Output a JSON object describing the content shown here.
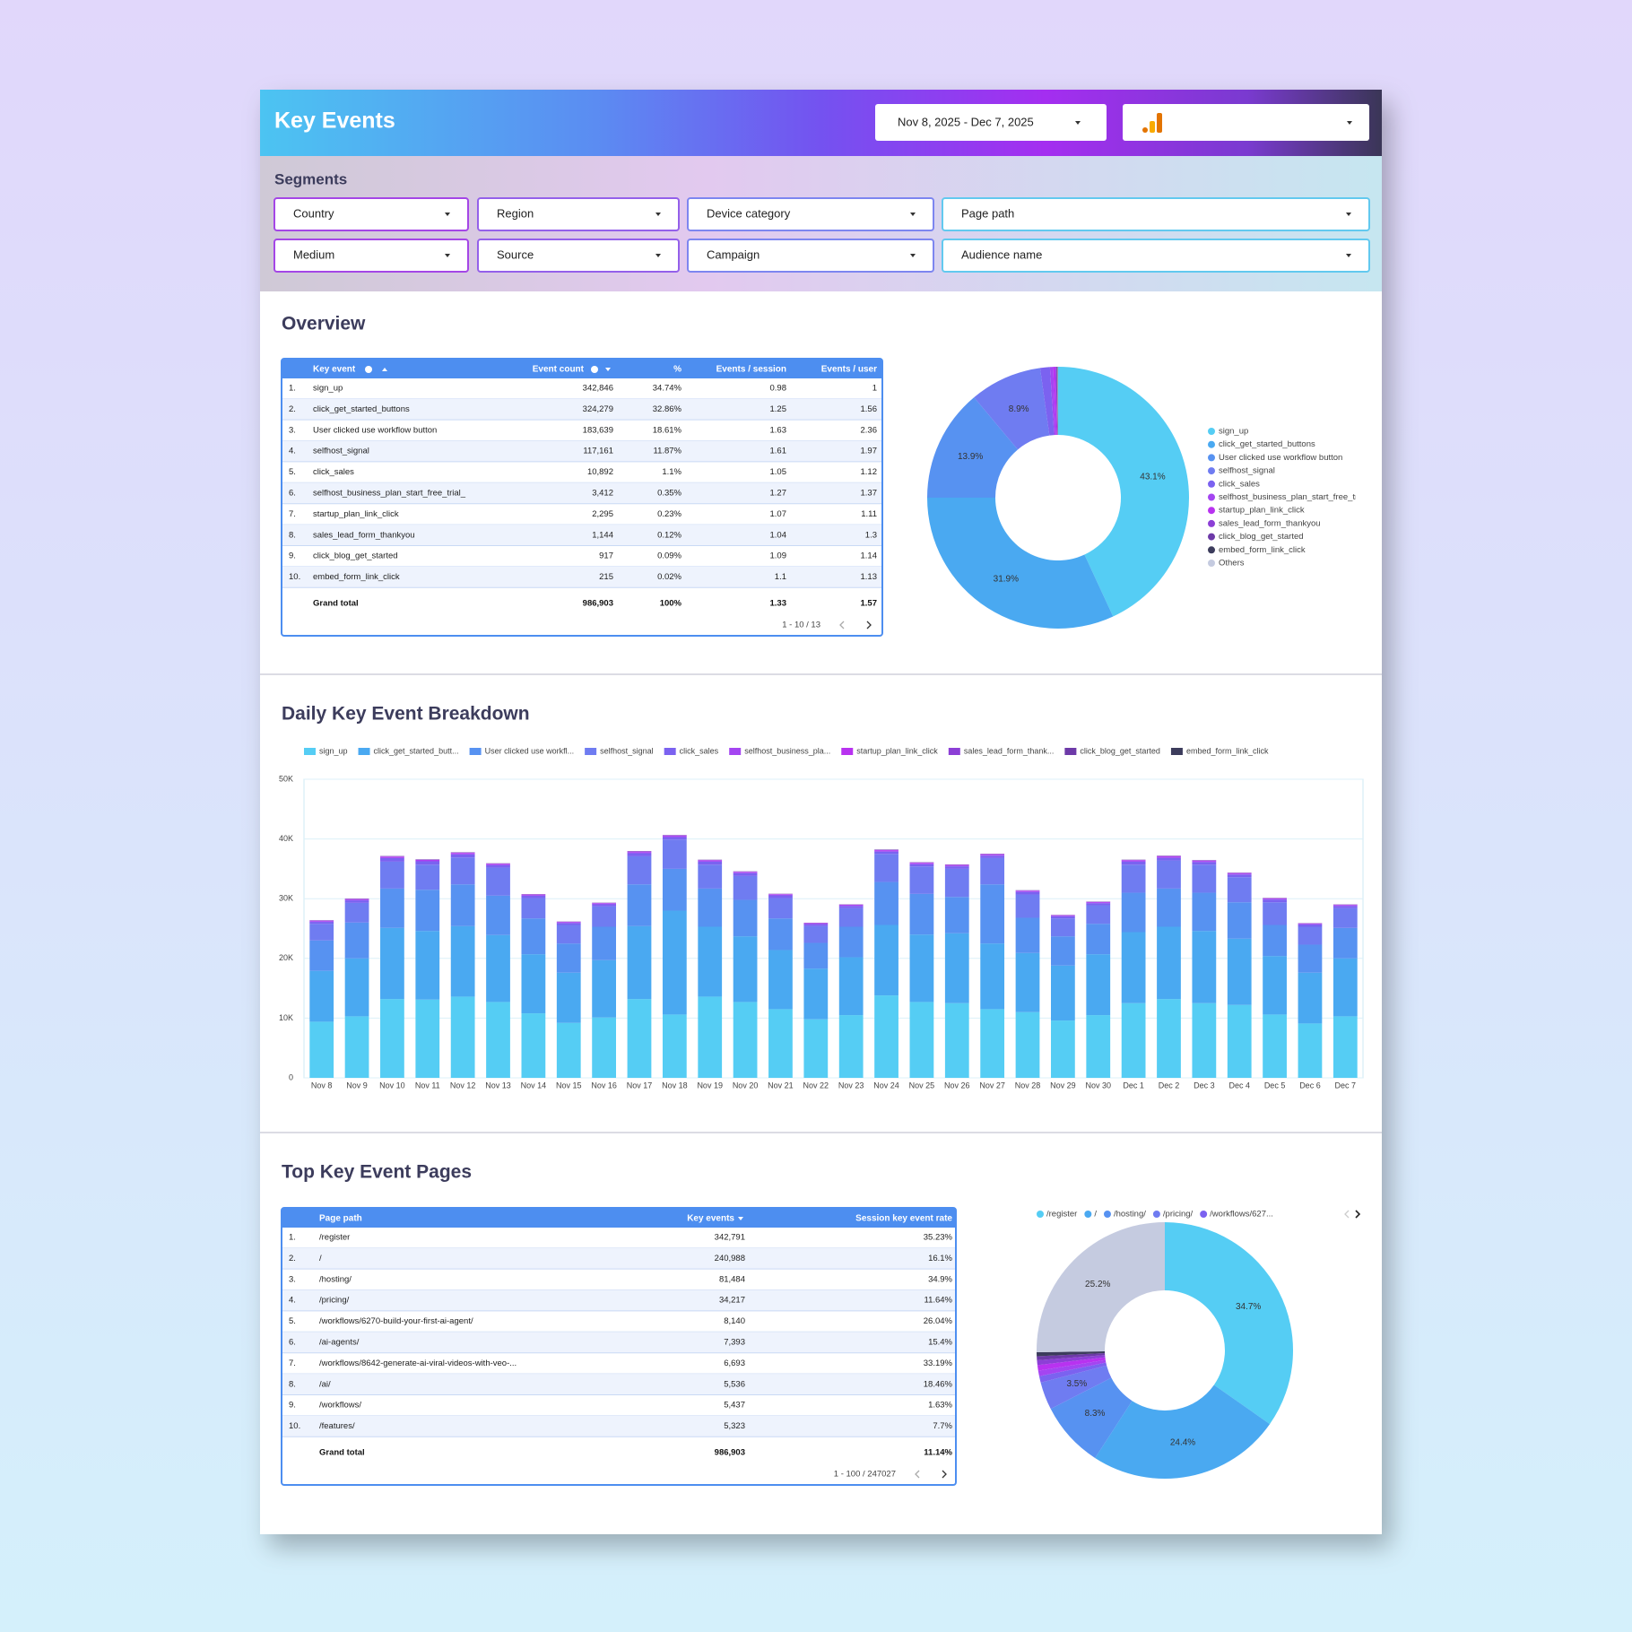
{
  "header": {
    "title": "Key Events",
    "date_range": "Nov 8, 2025 - Dec 7, 2025"
  },
  "segments": {
    "title": "Segments",
    "filters": [
      "Country",
      "Region",
      "Device category",
      "Page path",
      "Medium",
      "Source",
      "Campaign",
      "Audience name"
    ]
  },
  "overview": {
    "title": "Overview",
    "table": {
      "columns": [
        "Key event",
        "Event count",
        "%",
        "Events / session",
        "Events / user"
      ],
      "rows": [
        [
          "1.",
          "sign_up",
          "342,846",
          "34.74%",
          "0.98",
          "1"
        ],
        [
          "2.",
          "click_get_started_buttons",
          "324,279",
          "32.86%",
          "1.25",
          "1.56"
        ],
        [
          "3.",
          "User clicked use workflow button",
          "183,639",
          "18.61%",
          "1.63",
          "2.36"
        ],
        [
          "4.",
          "selfhost_signal",
          "117,161",
          "11.87%",
          "1.61",
          "1.97"
        ],
        [
          "5.",
          "click_sales",
          "10,892",
          "1.1%",
          "1.05",
          "1.12"
        ],
        [
          "6.",
          "selfhost_business_plan_start_free_trial_",
          "3,412",
          "0.35%",
          "1.27",
          "1.37"
        ],
        [
          "7.",
          "startup_plan_link_click",
          "2,295",
          "0.23%",
          "1.07",
          "1.11"
        ],
        [
          "8.",
          "sales_lead_form_thankyou",
          "1,144",
          "0.12%",
          "1.04",
          "1.3"
        ],
        [
          "9.",
          "click_blog_get_started",
          "917",
          "0.09%",
          "1.09",
          "1.14"
        ],
        [
          "10.",
          "embed_form_link_click",
          "215",
          "0.02%",
          "1.1",
          "1.13"
        ]
      ],
      "total": [
        "Grand total",
        "986,903",
        "100%",
        "1.33",
        "1.57"
      ],
      "pagination": "1 - 10 / 13"
    },
    "donut": {
      "type": "pie",
      "categories": [
        "sign_up",
        "click_get_started_buttons",
        "User clicked use workflow button",
        "selfhost_signal",
        "click_sales",
        "selfhost_business_plan_start_free_trial_",
        "startup_plan_link_click",
        "sales_lead_form_thankyou",
        "click_blog_get_started",
        "embed_form_link_click",
        "Others"
      ],
      "values": [
        43.1,
        31.9,
        13.9,
        8.9,
        1.2,
        0.4,
        0.3,
        0.1,
        0.1,
        0.05,
        0.05
      ],
      "value_labels": [
        "43.1%",
        "31.9%",
        "13.9%",
        "8.9%",
        null,
        null,
        null,
        null,
        null,
        null,
        null
      ],
      "colors": [
        "#55cdf4",
        "#4aa9f1",
        "#5792f1",
        "#6f7cf1",
        "#7b62f0",
        "#a445f1",
        "#b832f0",
        "#8c3fd6",
        "#6d3aa8",
        "#3c3c5c",
        "#c5cbe0"
      ]
    }
  },
  "daily": {
    "title": "Daily Key Event Breakdown",
    "chart": {
      "type": "bar",
      "stacked": true,
      "categories": [
        "Nov 8",
        "Nov 9",
        "Nov 10",
        "Nov 11",
        "Nov 12",
        "Nov 13",
        "Nov 14",
        "Nov 15",
        "Nov 16",
        "Nov 17",
        "Nov 18",
        "Nov 19",
        "Nov 20",
        "Nov 21",
        "Nov 22",
        "Nov 23",
        "Nov 24",
        "Nov 25",
        "Nov 26",
        "Nov 27",
        "Nov 28",
        "Nov 29",
        "Nov 30",
        "Dec 1",
        "Dec 2",
        "Dec 3",
        "Dec 4",
        "Dec 5",
        "Dec 6",
        "Dec 7"
      ],
      "series": [
        {
          "name": "sign_up",
          "color": "#55cdf4",
          "values": [
            9400,
            10300,
            13200,
            13100,
            13600,
            12700,
            10800,
            9200,
            10100,
            13200,
            10600,
            13600,
            12700,
            11500,
            9800,
            10500,
            13800,
            12700,
            12500,
            11500,
            11000,
            9600,
            10500,
            12500,
            13200,
            12500,
            12200,
            10600,
            9100,
            10300
          ]
        },
        {
          "name": "click_get_started_butt...",
          "color": "#4aa9f1",
          "values": [
            8500,
            9700,
            11900,
            11500,
            11800,
            11200,
            9900,
            8400,
            9600,
            12200,
            17400,
            11700,
            11000,
            9900,
            8500,
            9700,
            11800,
            11300,
            11700,
            11000,
            9900,
            9200,
            10200,
            11900,
            12100,
            12100,
            11100,
            9800,
            8500,
            9700
          ]
        },
        {
          "name": "User clicked use workfl...",
          "color": "#5792f1",
          "values": [
            5100,
            6000,
            6600,
            6900,
            7000,
            6600,
            6000,
            4900,
            5600,
            7000,
            7000,
            6400,
            6100,
            5300,
            4300,
            5100,
            7200,
            6800,
            6100,
            9900,
            5900,
            4900,
            5100,
            6600,
            6400,
            6400,
            6100,
            5200,
            4700,
            5100
          ]
        },
        {
          "name": "selfhost_signal",
          "color": "#6f7cf1",
          "values": [
            2800,
            3300,
            4500,
            4200,
            4500,
            4700,
            3400,
            3100,
            3400,
            4700,
            4900,
            4000,
            4000,
            3400,
            2800,
            3100,
            4700,
            4600,
            4700,
            4400,
            3900,
            3000,
            3100,
            4700,
            4700,
            4700,
            4200,
            3800,
            3000,
            3300
          ]
        },
        {
          "name": "click_sales",
          "color": "#7b62f0",
          "values": [
            320,
            420,
            600,
            560,
            520,
            400,
            380,
            330,
            360,
            520,
            420,
            500,
            480,
            450,
            330,
            390,
            380,
            380,
            420,
            400,
            430,
            340,
            350,
            500,
            440,
            430,
            450,
            450,
            380,
            380
          ]
        },
        {
          "name": "selfhost_business_pla...",
          "color": "#a445f1",
          "values": [
            120,
            130,
            160,
            150,
            160,
            150,
            130,
            110,
            120,
            170,
            160,
            150,
            140,
            120,
            100,
            110,
            160,
            150,
            140,
            150,
            130,
            110,
            120,
            150,
            160,
            150,
            140,
            120,
            100,
            110
          ]
        },
        {
          "name": "startup_plan_link_click",
          "color": "#b832f0",
          "values": [
            80,
            85,
            100,
            95,
            100,
            90,
            80,
            70,
            75,
            100,
            95,
            90,
            85,
            80,
            70,
            75,
            100,
            95,
            90,
            95,
            85,
            70,
            75,
            95,
            100,
            95,
            90,
            80,
            65,
            75
          ]
        },
        {
          "name": "sales_lead_form_thank...",
          "color": "#8c3fd6",
          "values": [
            40,
            45,
            50,
            45,
            50,
            45,
            40,
            35,
            40,
            50,
            45,
            45,
            40,
            40,
            35,
            40,
            50,
            45,
            45,
            45,
            40,
            35,
            35,
            45,
            50,
            45,
            45,
            40,
            35,
            40
          ]
        },
        {
          "name": "click_blog_get_started",
          "color": "#6d3aa8",
          "values": [
            30,
            35,
            40,
            35,
            40,
            35,
            30,
            25,
            30,
            40,
            35,
            35,
            30,
            30,
            25,
            30,
            40,
            35,
            35,
            35,
            30,
            25,
            30,
            35,
            40,
            35,
            35,
            30,
            25,
            30
          ]
        },
        {
          "name": "embed_form_link_click",
          "color": "#3c3c5c",
          "values": [
            7,
            7,
            8,
            8,
            8,
            7,
            7,
            6,
            7,
            8,
            8,
            7,
            7,
            7,
            6,
            7,
            8,
            8,
            7,
            8,
            7,
            6,
            7,
            8,
            8,
            8,
            7,
            7,
            6,
            7
          ]
        }
      ],
      "ylim": [
        0,
        50000
      ],
      "yticks": [
        0,
        {
          "value": 10000,
          "label": "10K"
        },
        {
          "value": 20000,
          "label": "20K"
        },
        {
          "value": 30000,
          "label": "30K"
        },
        {
          "value": 40000,
          "label": "40K"
        },
        {
          "value": 50000,
          "label": "50K"
        }
      ],
      "grid": true
    }
  },
  "pages": {
    "title": "Top Key Event Pages",
    "table": {
      "columns": [
        "Page path",
        "Key events",
        "Session key event rate"
      ],
      "rows": [
        [
          "1.",
          "/register",
          "342,791",
          "35.23%"
        ],
        [
          "2.",
          "/",
          "240,988",
          "16.1%"
        ],
        [
          "3.",
          "/hosting/",
          "81,484",
          "34.9%"
        ],
        [
          "4.",
          "/pricing/",
          "34,217",
          "11.64%"
        ],
        [
          "5.",
          "/workflows/6270-build-your-first-ai-agent/",
          "8,140",
          "26.04%"
        ],
        [
          "6.",
          "/ai-agents/",
          "7,393",
          "15.4%"
        ],
        [
          "7.",
          "/workflows/8642-generate-ai-viral-videos-with-veo-...",
          "6,693",
          "33.19%"
        ],
        [
          "8.",
          "/ai/",
          "5,536",
          "18.46%"
        ],
        [
          "9.",
          "/workflows/",
          "5,437",
          "1.63%"
        ],
        [
          "10.",
          "/features/",
          "5,323",
          "7.7%"
        ]
      ],
      "total": [
        "Grand total",
        "986,903",
        "11.14%"
      ],
      "pagination": "1 - 100 / 247027"
    },
    "donut": {
      "type": "pie",
      "legend": [
        "/register",
        "/",
        "/hosting/",
        "/pricing/",
        "/workflows/627..."
      ],
      "values": [
        34.7,
        24.4,
        8.3,
        3.5,
        0.8,
        0.7,
        0.7,
        0.6,
        0.5,
        0.5,
        25.2
      ],
      "value_labels": [
        "34.7%",
        "24.4%",
        "8.3%",
        "3.5%",
        null,
        null,
        null,
        null,
        null,
        null,
        "25.2%"
      ],
      "colors": [
        "#55cdf4",
        "#4aa9f1",
        "#5792f1",
        "#6f7cf1",
        "#7b62f0",
        "#a445f1",
        "#b832f0",
        "#8c3fd6",
        "#6d3aa8",
        "#3c3c5c",
        "#c5cbe0"
      ]
    }
  }
}
